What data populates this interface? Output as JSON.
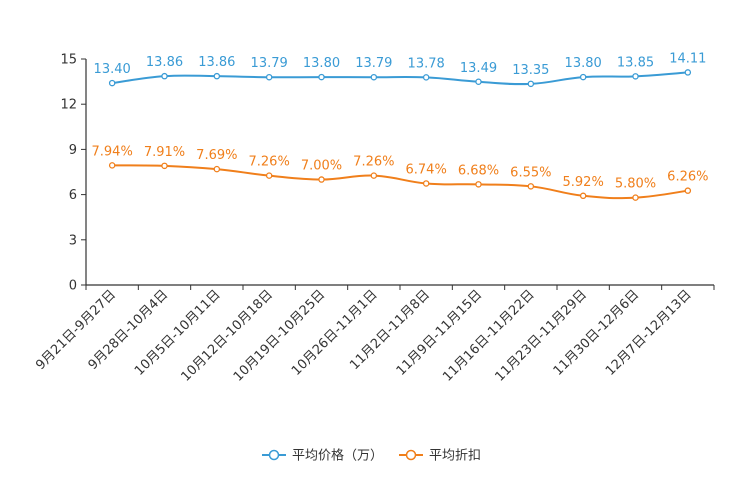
{
  "chart_data": {
    "type": "line",
    "title": "",
    "xlabel": "",
    "ylabel": "",
    "ylim": [
      0,
      15
    ],
    "yticks": [
      0,
      3,
      6,
      9,
      12,
      15
    ],
    "grid": false,
    "legend_position": "bottom-center",
    "categories": [
      "9月21日-9月27日",
      "9月28日-10月4日",
      "10月5日-10月11日",
      "10月12日-10月18日",
      "10月19日-10月25日",
      "10月26日-11月1日",
      "11月2日-11月8日",
      "11月9日-11月15日",
      "11月16日-11月22日",
      "11月23日-11月29日",
      "11月30日-12月6日",
      "12月7日-12月13日"
    ],
    "series": [
      {
        "name": "平均价格（万）",
        "color": "#3a9bd5",
        "values": [
          13.4,
          13.86,
          13.86,
          13.79,
          13.8,
          13.79,
          13.78,
          13.49,
          13.35,
          13.8,
          13.85,
          14.11
        ],
        "labels": [
          "13.40",
          "13.86",
          "13.86",
          "13.79",
          "13.80",
          "13.79",
          "13.78",
          "13.49",
          "13.35",
          "13.80",
          "13.85",
          "14.11"
        ]
      },
      {
        "name": "平均折扣",
        "color": "#f07f1b",
        "values": [
          7.94,
          7.91,
          7.69,
          7.26,
          7.0,
          7.26,
          6.74,
          6.68,
          6.55,
          5.92,
          5.8,
          6.26
        ],
        "labels": [
          "7.94%",
          "7.91%",
          "7.69%",
          "7.26%",
          "7.00%",
          "7.26%",
          "6.74%",
          "6.68%",
          "6.55%",
          "5.92%",
          "5.80%",
          "6.26%"
        ]
      }
    ]
  }
}
